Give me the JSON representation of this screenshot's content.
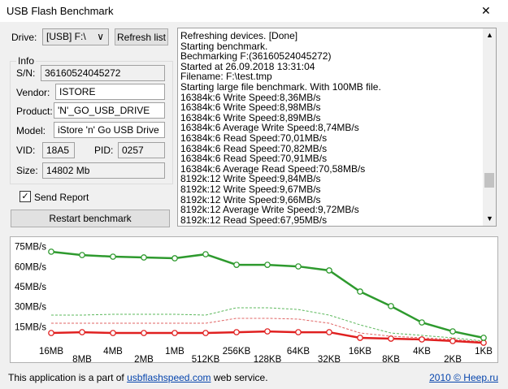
{
  "window": {
    "title": "USB Flash Benchmark",
    "close": "✕"
  },
  "form": {
    "drive_label": "Drive:",
    "drive_value": "[USB] F:\\",
    "refresh": "Refresh list",
    "info": "Info",
    "sn_label": "S/N:",
    "sn": "36160524045272",
    "vendor_label": "Vendor:",
    "vendor": "ISTORE",
    "product_label": "Product:",
    "product": "'N'_GO_USB_DRIVE",
    "model_label": "Model:",
    "model": "iStore 'n' Go USB Drive",
    "vid_label": "VID:",
    "vid": "18A5",
    "pid_label": "PID:",
    "pid": "0257",
    "size_label": "Size:",
    "size": "14802 Mb",
    "send_report": "Send Report",
    "restart": "Restart benchmark"
  },
  "log": [
    "Refreshing devices. [Done]",
    "Starting benchmark.",
    "Bechmarking F:(36160524045272)",
    "Started at 26.09.2018 13:31:04",
    "Filename: F:\\test.tmp",
    "Starting large file benchmark. With 100MB file.",
    "16384k:6 Write Speed:8,36MB/s",
    "16384k:6 Write Speed:8,98MB/s",
    "16384k:6 Write Speed:8,89MB/s",
    "16384k:6 Average Write Speed:8,74MB/s",
    "16384k:6 Read Speed:70,01MB/s",
    "16384k:6 Read Speed:70,82MB/s",
    "16384k:6 Read Speed:70,91MB/s",
    "16384k:6 Average Read Speed:70,58MB/s",
    "8192k:12 Write Speed:9,84MB/s",
    "8192k:12 Write Speed:9,67MB/s",
    "8192k:12 Write Speed:9,66MB/s",
    "8192k:12 Average Write Speed:9,72MB/s",
    "8192k:12 Read Speed:67,95MB/s"
  ],
  "chart_data": {
    "type": "line",
    "categories": [
      "16MB",
      "8MB",
      "4MB",
      "2MB",
      "1MB",
      "512KB",
      "256KB",
      "128KB",
      "64KB",
      "32KB",
      "16KB",
      "8KB",
      "4KB",
      "2KB",
      "1KB"
    ],
    "series": [
      {
        "color": "#e06464",
        "style": "dashed",
        "values": [
          18.2,
          18.2,
          18.2,
          18.2,
          18.2,
          18.2,
          21.9,
          21.9,
          21.3,
          18.2,
          10.9,
          8.5,
          7.3,
          6.1,
          4.3
        ]
      },
      {
        "color": "#5cb85c",
        "style": "dashed",
        "values": [
          24.3,
          24.3,
          24.9,
          24.9,
          24.9,
          24.3,
          29.8,
          29.8,
          28.5,
          24.3,
          17,
          10.9,
          9.1,
          7.3,
          4.9
        ]
      },
      {
        "color": "#e02020",
        "style": "solid",
        "values": [
          10.9,
          11.5,
          10.9,
          10.9,
          10.9,
          10.9,
          11.5,
          12.1,
          11.5,
          11.5,
          7.3,
          6.7,
          6.1,
          4.9,
          3.6
        ]
      },
      {
        "color": "#2e9a2e",
        "style": "solid",
        "values": [
          71.7,
          69.2,
          68,
          67.4,
          66.8,
          69.8,
          61.9,
          61.9,
          60.7,
          57.7,
          41.9,
          31,
          18.8,
          12.1,
          7.3
        ]
      }
    ],
    "ylim": [
      0,
      82
    ],
    "yticks": [
      {
        "value": 15,
        "label": "15MB/s"
      },
      {
        "value": 30,
        "label": "30MB/s"
      },
      {
        "value": 45,
        "label": "45MB/s"
      },
      {
        "value": 60,
        "label": "60MB/s"
      },
      {
        "value": 75,
        "label": "75MB/s"
      }
    ]
  },
  "footer": {
    "text1": "This application is a part of",
    "link": "usbflashspeed.com",
    "text2": "web service.",
    "copyright": "2010 © Heep.ru"
  }
}
